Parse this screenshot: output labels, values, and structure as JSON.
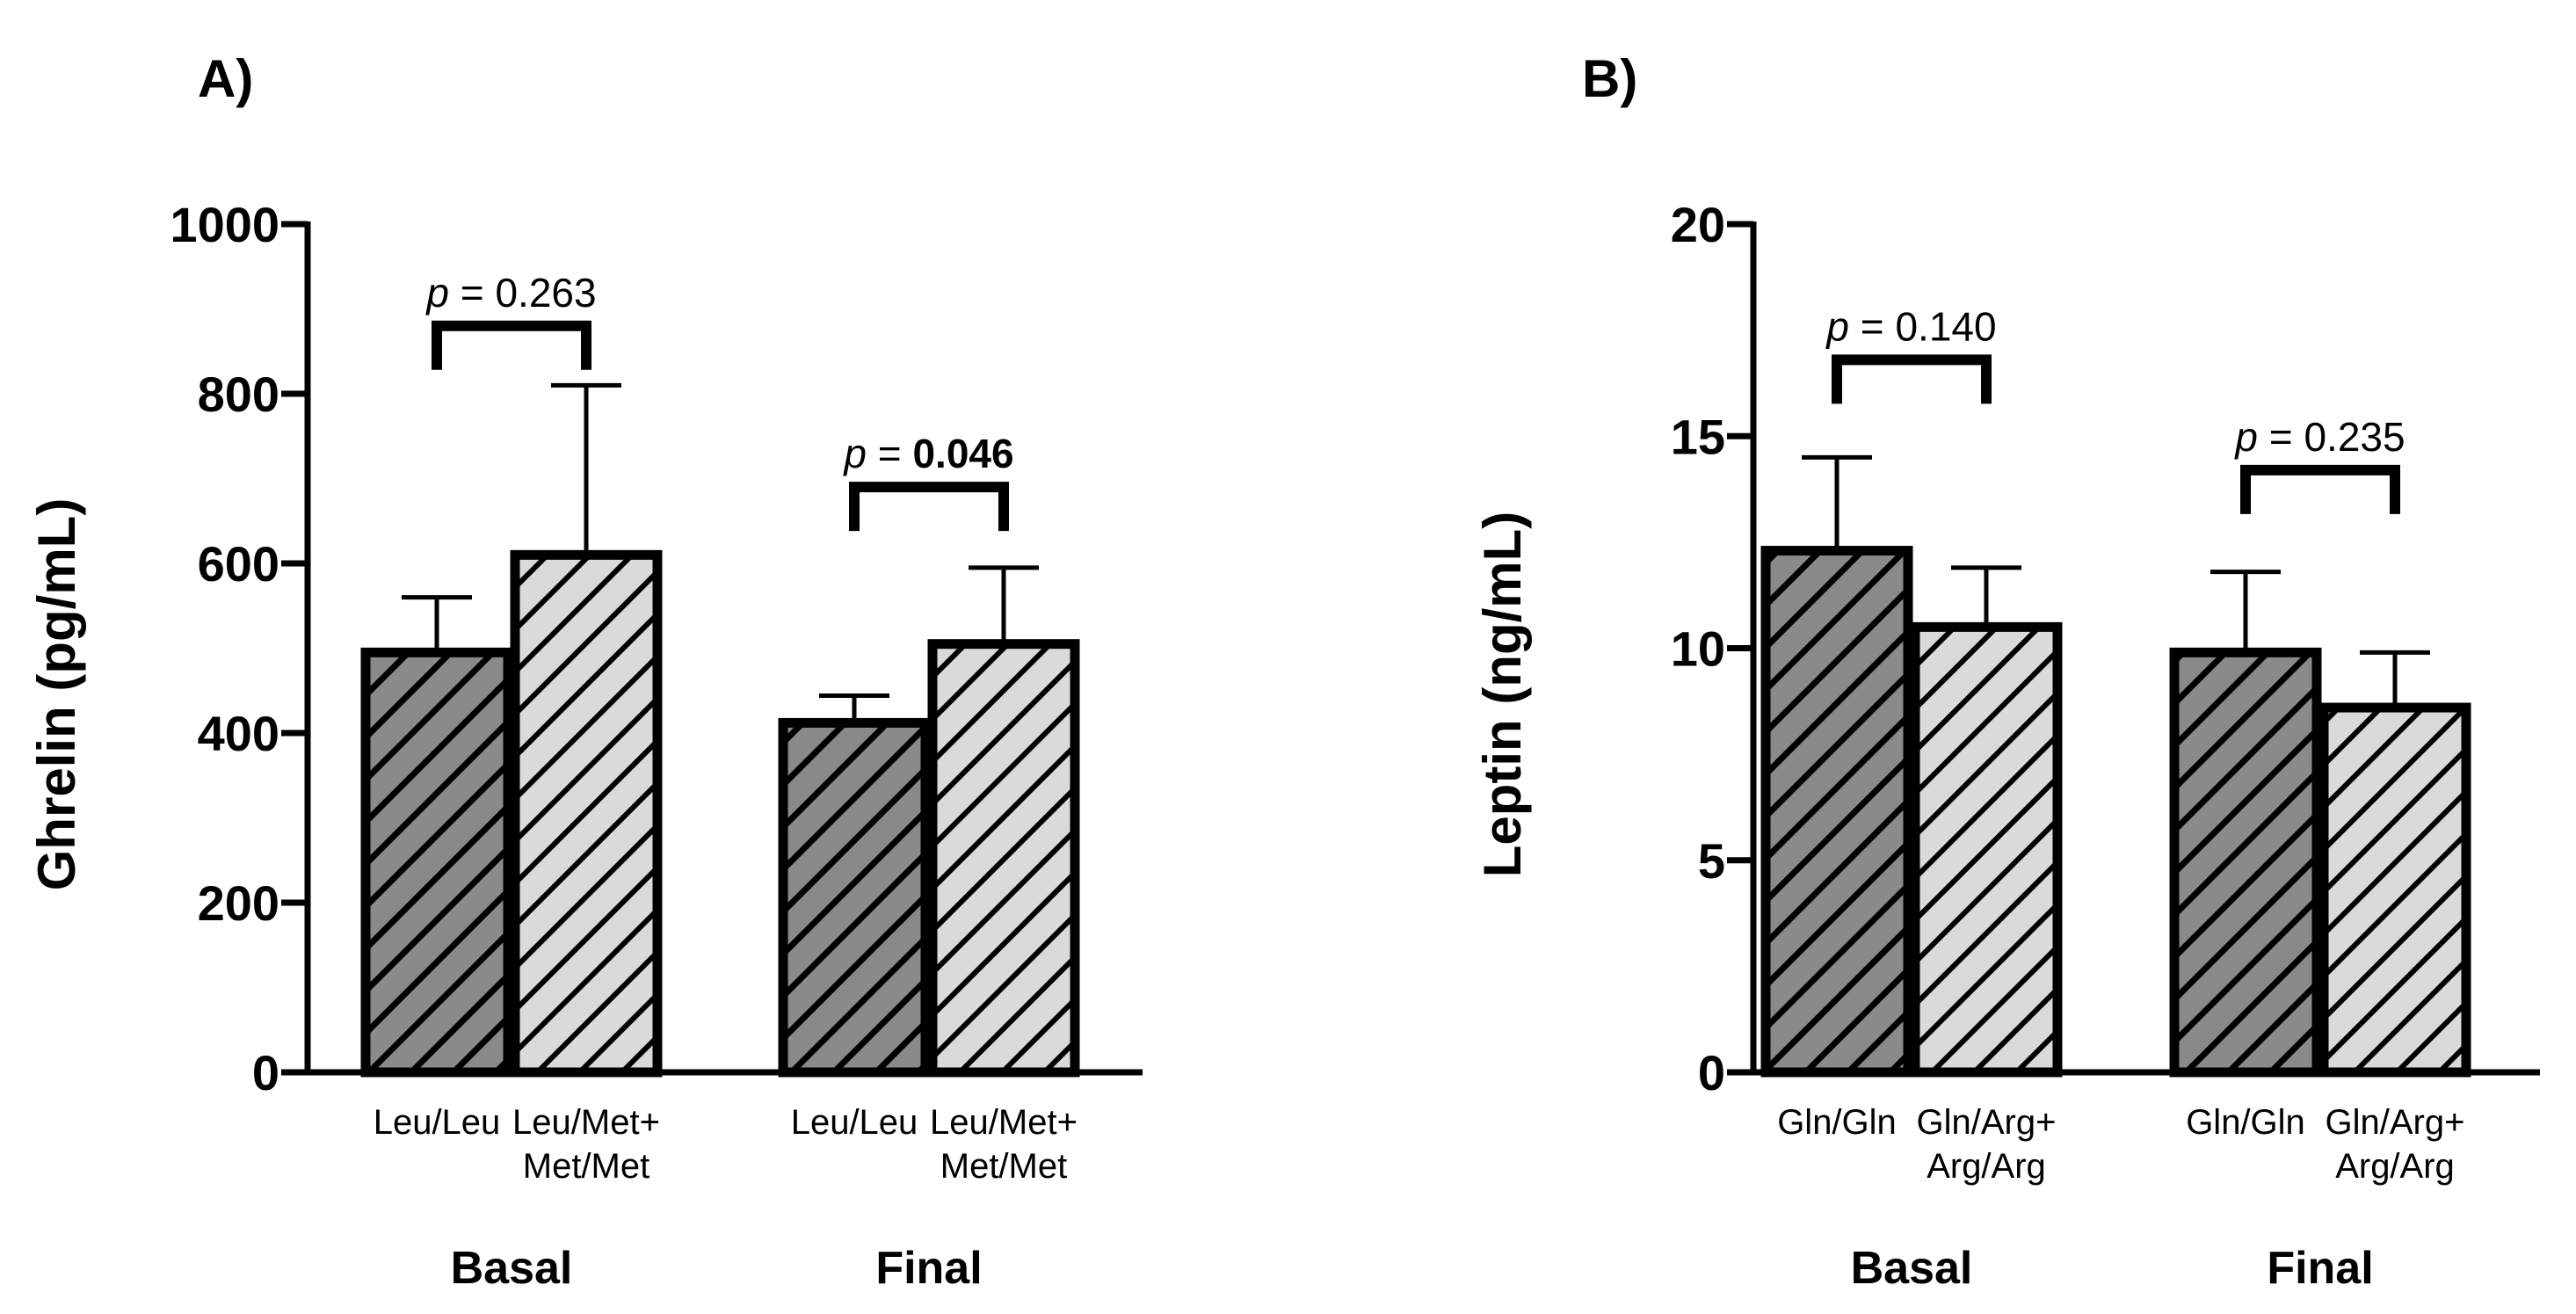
{
  "chart_data": [
    {
      "type": "bar",
      "panel_label": "A)",
      "ylabel": "Ghrelin (pg/mL)",
      "ylim": [
        0,
        1000
      ],
      "yticks": [
        "0",
        "200",
        "400",
        "600",
        "800",
        "1000"
      ],
      "groups": [
        {
          "name": "Basal",
          "bars": [
            {
              "line1": "Leu/Leu",
              "line2": "",
              "value": 495,
              "error": 65,
              "pattern": "dark"
            },
            {
              "line1": "Leu/Met+",
              "line2": "Met/Met",
              "value": 610,
              "error": 200,
              "pattern": "light"
            }
          ],
          "p_prefix": "p",
          "p_equals": " = ",
          "p_value": "0.263",
          "p_bold": false,
          "bracket_y": 880
        },
        {
          "name": "Final",
          "bars": [
            {
              "line1": "Leu/Leu",
              "line2": "",
              "value": 412,
              "error": 32,
              "pattern": "dark"
            },
            {
              "line1": "Leu/Met+",
              "line2": "Met/Met",
              "value": 505,
              "error": 90,
              "pattern": "light"
            }
          ],
          "p_prefix": "p",
          "p_equals": " = ",
          "p_value": "0.046",
          "p_bold": true,
          "bracket_y": 690
        }
      ]
    },
    {
      "type": "bar",
      "panel_label": "B)",
      "ylabel": "Leptin (ng/mL)",
      "ylim": [
        0,
        20
      ],
      "yticks": [
        "0",
        "5",
        "10",
        "15",
        "20"
      ],
      "groups": [
        {
          "name": "Basal",
          "bars": [
            {
              "line1": "Gln/Gln",
              "line2": "",
              "value": 12.3,
              "error": 2.2,
              "pattern": "dark"
            },
            {
              "line1": "Gln/Arg+",
              "line2": "Arg/Arg",
              "value": 10.5,
              "error": 1.4,
              "pattern": "light"
            }
          ],
          "p_prefix": "p",
          "p_equals": " = ",
          "p_value": "0.140",
          "p_bold": false,
          "bracket_y": 16.8
        },
        {
          "name": "Final",
          "bars": [
            {
              "line1": "Gln/Gln",
              "line2": "",
              "value": 9.9,
              "error": 1.9,
              "pattern": "dark"
            },
            {
              "line1": "Gln/Arg+",
              "line2": "Arg/Arg",
              "value": 8.6,
              "error": 1.3,
              "pattern": "light"
            }
          ],
          "p_prefix": "p",
          "p_equals": " = ",
          "p_value": "0.235",
          "p_bold": false,
          "bracket_y": 14.2
        }
      ]
    }
  ],
  "colors": {
    "dark_fill": "#8a8a8a",
    "light_fill": "#dadada",
    "hatch": "#000000",
    "axis": "#000000"
  }
}
